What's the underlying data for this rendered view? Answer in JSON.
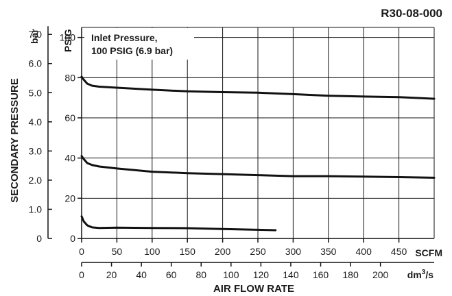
{
  "chart_data": {
    "type": "line",
    "title": "R30-08-000",
    "annotation": {
      "line1": "Inlet Pressure,",
      "line2": "100 PSIG (6.9 bar)"
    },
    "ylabel": "SECONDARY PRESSURE",
    "xlabel": "AIR FLOW RATE",
    "y_unit_psig": "PSIG",
    "y_unit_bar": "bar",
    "x_unit_scfm": "SCFM",
    "x_unit_dm3s_base": "dm",
    "x_unit_dm3s_sup": "3",
    "x_unit_dm3s_tail": "/s",
    "xlim": [
      0,
      500
    ],
    "ylim": [
      0,
      105
    ],
    "grid": true,
    "psig_ticks": [
      "0",
      "20",
      "40",
      "60",
      "80",
      "100"
    ],
    "psig_values": [
      0,
      20,
      40,
      60,
      80,
      100
    ],
    "bar_ticks": [
      "0",
      "1.0",
      "2.0",
      "3.0",
      "4.0",
      "5.0",
      "6.0",
      "7.0"
    ],
    "bar_values": [
      0,
      1,
      2,
      3,
      4,
      5,
      6,
      7
    ],
    "scfm_ticks": [
      "0",
      "50",
      "100",
      "150",
      "200",
      "250",
      "300",
      "350",
      "400",
      "450"
    ],
    "scfm_values": [
      0,
      50,
      100,
      150,
      200,
      250,
      300,
      350,
      400,
      450
    ],
    "dm3s_ticks": [
      "0",
      "20",
      "40",
      "60",
      "80",
      "100",
      "120",
      "140",
      "160",
      "180",
      "200"
    ],
    "dm3s_values": [
      0,
      20,
      40,
      60,
      80,
      100,
      120,
      140,
      160,
      180,
      200
    ],
    "series": [
      {
        "x": [
          0,
          3,
          8,
          15,
          25,
          50,
          100,
          150,
          200,
          250,
          300,
          350,
          400,
          450,
          500
        ],
        "y": [
          80.5,
          79,
          77,
          76,
          75.5,
          75,
          74,
          73.2,
          72.8,
          72.5,
          71.8,
          71,
          70.6,
          70.3,
          69.5
        ]
      },
      {
        "x": [
          0,
          3,
          8,
          15,
          25,
          50,
          100,
          150,
          200,
          250,
          300,
          350,
          400,
          450,
          500
        ],
        "y": [
          41,
          39.5,
          37.5,
          36.5,
          35.8,
          34.8,
          33.2,
          32.5,
          32,
          31.5,
          31,
          31,
          30.8,
          30.5,
          30.2
        ]
      },
      {
        "x": [
          0,
          3,
          8,
          15,
          25,
          50,
          100,
          150,
          200,
          250,
          275
        ],
        "y": [
          11,
          8.5,
          6.5,
          5.5,
          5.2,
          5.4,
          5.2,
          5.1,
          4.7,
          4.3,
          4.1
        ]
      }
    ]
  }
}
